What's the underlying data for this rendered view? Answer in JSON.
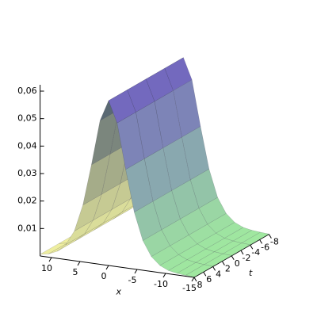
{
  "chart_data": {
    "type": "surface",
    "x_label": "x",
    "t_label": "t",
    "x": [
      -15,
      -13.5,
      -12,
      -10.5,
      -9,
      -7.5,
      -6,
      -4.5,
      -3,
      -1.5,
      0,
      1.5,
      3,
      4.5,
      6,
      7.5,
      9,
      10.5,
      12
    ],
    "t": [
      -8,
      -4,
      0,
      4,
      8
    ],
    "z": [
      [
        0.0001,
        0.0003,
        0.0006,
        0.0012,
        0.0026,
        0.0054,
        0.0108,
        0.0207,
        0.0358,
        0.0523,
        0.06,
        0.0523,
        0.0358,
        0.0207,
        0.0108,
        0.0054,
        0.0026,
        0.0012,
        0.0006
      ],
      [
        0.0001,
        0.0003,
        0.0006,
        0.0012,
        0.0026,
        0.0054,
        0.0108,
        0.0207,
        0.0358,
        0.0523,
        0.06,
        0.0523,
        0.0358,
        0.0207,
        0.0108,
        0.0054,
        0.0026,
        0.0012,
        0.0006
      ],
      [
        0.0001,
        0.0003,
        0.0006,
        0.0012,
        0.0026,
        0.0054,
        0.0108,
        0.0207,
        0.0358,
        0.0523,
        0.06,
        0.0523,
        0.0358,
        0.0207,
        0.0108,
        0.0054,
        0.0026,
        0.0012,
        0.0006
      ],
      [
        0.0001,
        0.0003,
        0.0006,
        0.0012,
        0.0026,
        0.0054,
        0.0108,
        0.0207,
        0.0358,
        0.0523,
        0.06,
        0.0523,
        0.0358,
        0.0207,
        0.0108,
        0.0054,
        0.0026,
        0.0012,
        0.0006
      ],
      [
        0.0001,
        0.0003,
        0.0006,
        0.0012,
        0.0026,
        0.0054,
        0.0108,
        0.0207,
        0.0358,
        0.0523,
        0.06,
        0.0523,
        0.0358,
        0.0207,
        0.0108,
        0.0054,
        0.0026,
        0.0012,
        0.0006
      ]
    ],
    "xlim": [
      -15,
      12
    ],
    "tlim": [
      -8,
      8
    ],
    "zlim": [
      0,
      0.06
    ],
    "xticks": [
      10,
      5,
      0,
      -5,
      -10,
      -15
    ],
    "tticks": [
      8,
      6,
      4,
      2,
      0,
      -2,
      -4,
      -6,
      -8
    ],
    "zticks": [
      {
        "value": 0.01,
        "label": "0,01"
      },
      {
        "value": 0.02,
        "label": "0,02"
      },
      {
        "value": 0.03,
        "label": "0,03"
      },
      {
        "value": 0.04,
        "label": "0,04"
      },
      {
        "value": 0.05,
        "label": "0,05"
      },
      {
        "value": 0.06,
        "label": "0,06"
      }
    ]
  }
}
